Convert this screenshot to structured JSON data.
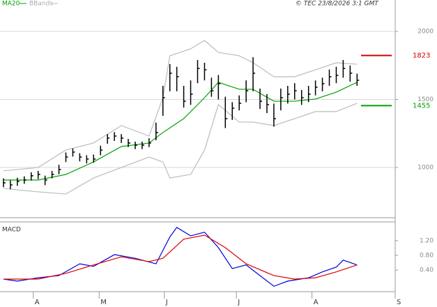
{
  "chart_data": [
    {
      "type": "ohlc",
      "copyright": "© TEC 23/8/2026 3:1 GMT",
      "xlim": [
        -0.5,
        56.5
      ],
      "ylim": [
        631,
        2231
      ],
      "yticks": [
        1000,
        1500,
        2000
      ],
      "grid": true,
      "bar_color": "#000000",
      "high": [
        920,
        905,
        925,
        935,
        965,
        975,
        940,
        975,
        1020,
        1110,
        1140,
        1105,
        1090,
        1095,
        1160,
        1245,
        1260,
        1245,
        1210,
        1190,
        1190,
        1215,
        1330,
        1600,
        1760,
        1740,
        1600,
        1640,
        1790,
        1770,
        1660,
        1680,
        1520,
        1480,
        1530,
        1640,
        1810,
        1580,
        1540,
        1470,
        1580,
        1600,
        1620,
        1570,
        1600,
        1640,
        1660,
        1720,
        1740,
        1790,
        1750,
        1690
      ],
      "low": [
        855,
        840,
        865,
        880,
        905,
        915,
        870,
        920,
        950,
        1040,
        1080,
        1045,
        1030,
        1035,
        1090,
        1175,
        1195,
        1180,
        1150,
        1135,
        1135,
        1150,
        1200,
        1380,
        1560,
        1560,
        1440,
        1460,
        1620,
        1640,
        1520,
        1500,
        1290,
        1350,
        1420,
        1480,
        1560,
        1430,
        1400,
        1300,
        1420,
        1470,
        1500,
        1460,
        1480,
        1530,
        1560,
        1600,
        1620,
        1660,
        1630,
        1600
      ],
      "close": [
        887,
        872,
        898,
        908,
        939,
        949,
        908,
        949,
        985,
        1077,
        1113,
        1077,
        1062,
        1062,
        1128,
        1216,
        1231,
        1216,
        1180,
        1164,
        1164,
        1180,
        1257,
        1513,
        1693,
        1667,
        1487,
        1539,
        1728,
        1718,
        1564,
        1616,
        1359,
        1436,
        1472,
        1564,
        1693,
        1487,
        1462,
        1359,
        1513,
        1539,
        1564,
        1513,
        1539,
        1590,
        1616,
        1667,
        1677,
        1728,
        1693,
        1641
      ],
      "series": [
        {
          "name": "MA20",
          "color": "#00a000",
          "x": [
            0,
            5,
            9,
            13,
            17,
            21,
            23,
            26,
            29,
            31,
            34,
            36,
            39,
            42,
            45,
            48,
            51
          ],
          "values": [
            908,
            908,
            949,
            1041,
            1154,
            1180,
            1257,
            1359,
            1513,
            1626,
            1575,
            1575,
            1487,
            1487,
            1503,
            1554,
            1626
          ]
        },
        {
          "name": "BBands",
          "color": "#bbbbbb",
          "x": [
            0,
            5,
            9,
            13,
            17,
            21,
            23,
            24,
            27,
            29,
            31,
            34,
            36,
            39,
            42,
            45,
            48,
            51
          ],
          "upper": [
            975,
            1000,
            1128,
            1180,
            1308,
            1231,
            1513,
            1821,
            1872,
            1934,
            1846,
            1821,
            1770,
            1667,
            1667,
            1718,
            1770,
            1759
          ],
          "lower": [
            846,
            821,
            805,
            923,
            1000,
            1077,
            1041,
            923,
            949,
            1128,
            1462,
            1334,
            1334,
            1308,
            1359,
            1411,
            1411,
            1472
          ]
        }
      ],
      "levels": [
        {
          "value": 1823,
          "color": "#cc0000"
        },
        {
          "value": 1455,
          "color": "#00a000"
        }
      ]
    },
    {
      "type": "line",
      "title": "MACD",
      "xlim": [
        -0.5,
        56.5
      ],
      "xticks": [
        {
          "value": 4.3,
          "label": "A"
        },
        {
          "value": 13.8,
          "label": "M"
        },
        {
          "value": 23.2,
          "label": "J"
        },
        {
          "value": 33.6,
          "label": "J"
        },
        {
          "value": 44.5,
          "label": "A"
        },
        {
          "value": 56.5,
          "label": "S"
        }
      ],
      "ylim": [
        -0.13,
        1.71
      ],
      "yticks": [
        {
          "value": 0.4,
          "label": "0.40"
        },
        {
          "value": 0.8,
          "label": "0.80"
        },
        {
          "value": 1.2,
          "label": "1.20"
        }
      ],
      "series": [
        {
          "color": "#0000dd",
          "x": [
            0,
            2,
            5,
            8,
            11,
            13,
            16,
            19,
            22,
            24,
            25,
            27,
            29,
            31,
            33,
            35,
            37,
            39,
            41,
            44,
            46,
            48,
            49,
            51
          ],
          "values": [
            0.155,
            0.1,
            0.19,
            0.25,
            0.57,
            0.5,
            0.82,
            0.72,
            0.57,
            1.3,
            1.56,
            1.33,
            1.43,
            1.01,
            0.44,
            0.54,
            0.25,
            -0.04,
            0.1,
            0.19,
            0.35,
            0.48,
            0.67,
            0.54
          ]
        },
        {
          "color": "#dd0000",
          "x": [
            0,
            5,
            9,
            13,
            17,
            21,
            23,
            26,
            29,
            32,
            35,
            39,
            42,
            45,
            48,
            51
          ],
          "values": [
            0.155,
            0.155,
            0.31,
            0.54,
            0.76,
            0.63,
            0.72,
            1.24,
            1.35,
            1.01,
            0.57,
            0.25,
            0.155,
            0.19,
            0.35,
            0.54
          ]
        }
      ]
    }
  ]
}
